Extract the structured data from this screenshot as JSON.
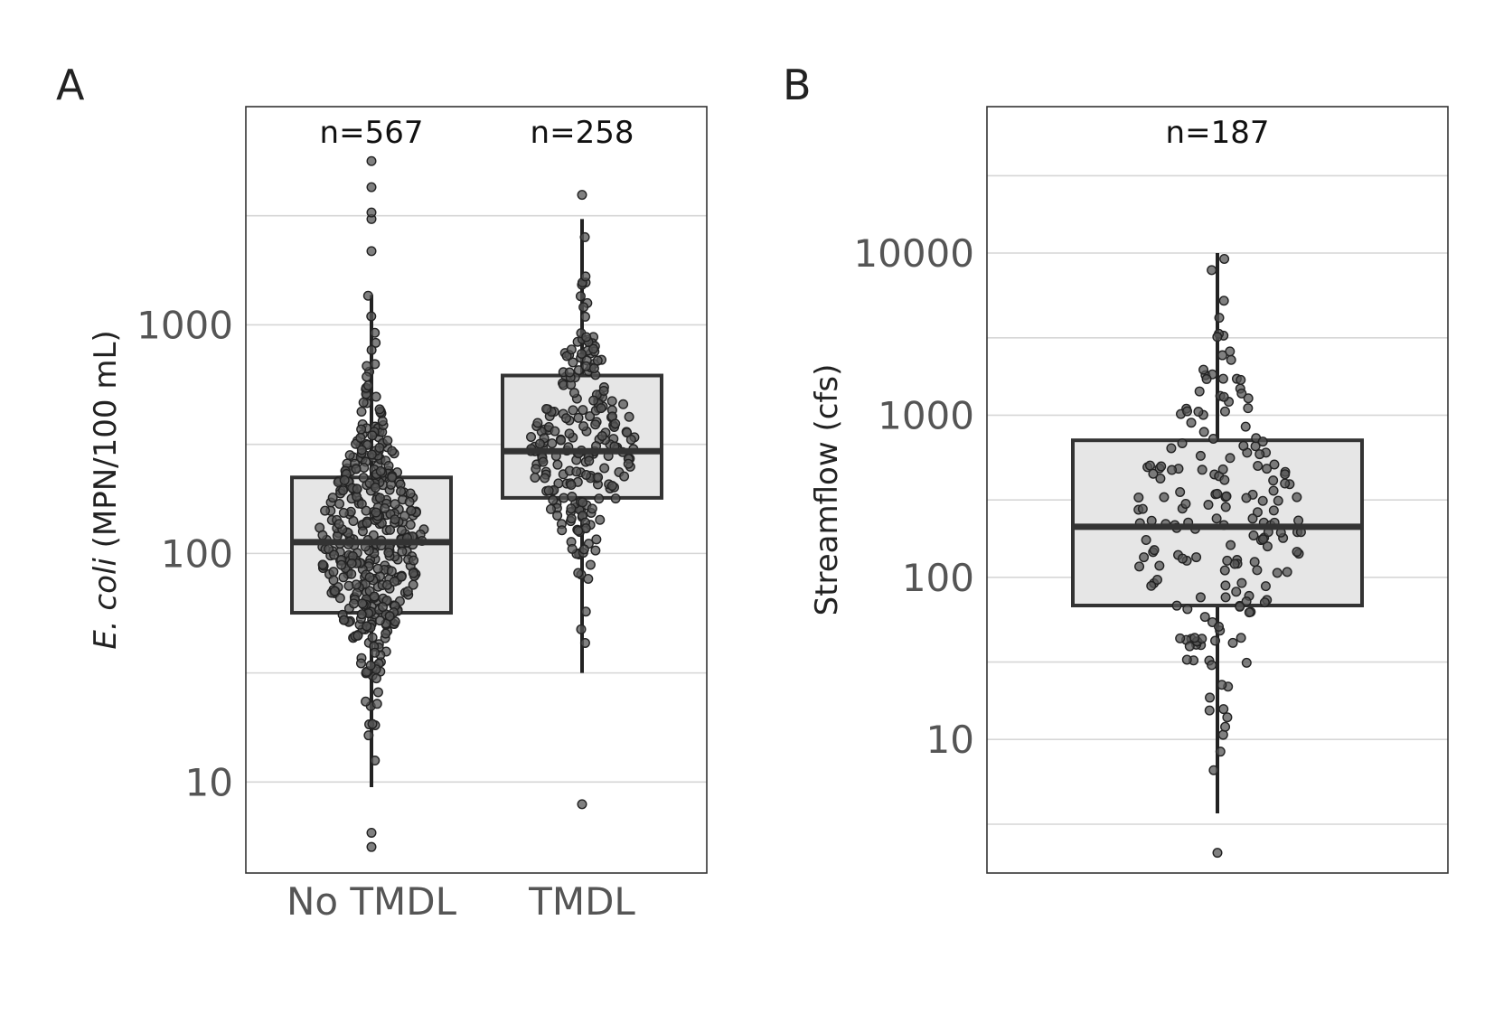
{
  "chart_data": [
    {
      "type": "box",
      "panel_label": "A",
      "ylabel_italic": "E. coli",
      "ylabel_rest": " (MPN/100 mL)",
      "yscale": "log",
      "ylim": [
        4,
        9000
      ],
      "yticks": [
        10,
        100,
        1000
      ],
      "ytick_labels": [
        "10",
        "100",
        "1000"
      ],
      "minor_gridlines": [
        30,
        300,
        3000
      ],
      "categories": [
        "No TMDL",
        "TMDL"
      ],
      "n_labels": [
        "n=567",
        "n=258"
      ],
      "boxes": [
        {
          "q1": 55,
          "median": 112,
          "q3": 215,
          "whisker_low": 9.5,
          "whisker_high": 1350
        },
        {
          "q1": 175,
          "median": 280,
          "q3": 600,
          "whisker_low": 30,
          "whisker_high": 2900
        }
      ],
      "outliers": [
        [
          5.2,
          6,
          2100,
          2900,
          3100,
          4000,
          5200
        ],
        [
          8,
          3700
        ]
      ],
      "grid": true
    },
    {
      "type": "box",
      "panel_label": "B",
      "ylabel": "Streamflow (cfs)",
      "yscale": "log",
      "ylim": [
        1.5,
        80000
      ],
      "yticks": [
        10,
        100,
        1000,
        10000
      ],
      "ytick_labels": [
        "10",
        "100",
        "1000",
        "10000"
      ],
      "minor_gridlines": [
        3,
        30,
        300,
        3000,
        30000
      ],
      "categories": [
        ""
      ],
      "n_labels": [
        "n=187"
      ],
      "boxes": [
        {
          "q1": 67,
          "median": 205,
          "q3": 700,
          "whisker_low": 3.5,
          "whisker_high": 10000
        }
      ],
      "outliers": [
        [
          2
        ]
      ],
      "grid": true
    }
  ]
}
